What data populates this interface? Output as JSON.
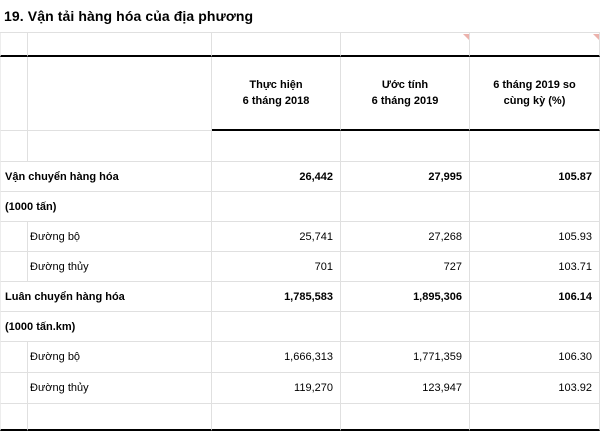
{
  "title": "19. Vận tải hàng hóa của địa phương",
  "table": {
    "col_headers": [
      {
        "line1": "Thực hiện",
        "line2": "6 tháng 2018"
      },
      {
        "line1": "Ước tính",
        "line2": "6 tháng 2019"
      },
      {
        "line1": "6 tháng 2019 so",
        "line2": "cùng kỳ (%)"
      }
    ],
    "rows": [
      {
        "label": "Vận chuyển hàng hóa",
        "values": [
          "26,442",
          "27,995",
          "105.87"
        ]
      },
      {
        "label": "(1000 tấn)",
        "values": [
          "",
          "",
          ""
        ]
      },
      {
        "label": "Đường bộ",
        "values": [
          "25,741",
          "27,268",
          "105.93"
        ]
      },
      {
        "label": "Đường thủy",
        "values": [
          "701",
          "727",
          "103.71"
        ]
      },
      {
        "label": "Luân chuyển hàng hóa",
        "values": [
          "1,785,583",
          "1,895,306",
          "106.14"
        ]
      },
      {
        "label": "(1000 tấn.km)",
        "values": [
          "",
          "",
          ""
        ]
      },
      {
        "label": "Đường bộ",
        "values": [
          "1,666,313",
          "1,771,359",
          "106.30"
        ]
      },
      {
        "label": "Đường thủy",
        "values": [
          "119,270",
          "123,947",
          "103.92"
        ]
      }
    ]
  },
  "comment_markers": {
    "count": 2,
    "color": "#dd7268",
    "locations": [
      "blank-row-col-uoc-tinh",
      "blank-row-col-so-cung-ky"
    ]
  },
  "colors": {
    "gridline": "#e0e0e0",
    "section_border": "#000000",
    "background": "#ffffff",
    "text": "#000000"
  }
}
